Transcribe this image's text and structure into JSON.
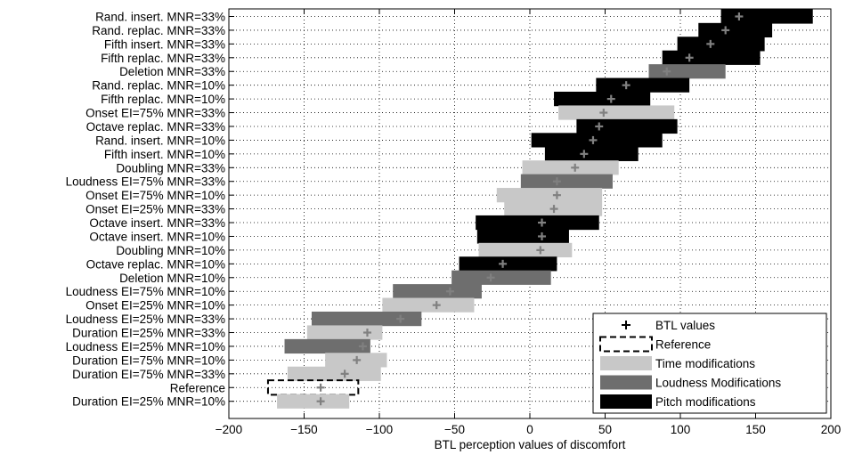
{
  "chart_data": {
    "type": "bar",
    "orientation": "horizontal",
    "xlabel": "BTL perception values of discomfort",
    "xlim": [
      -200,
      200
    ],
    "xticks": [
      -200,
      -150,
      -100,
      -50,
      0,
      50,
      100,
      150,
      200
    ],
    "grid": true,
    "legend_position": "bottom-right",
    "legend": [
      {
        "label": "BTL values",
        "kind": "marker"
      },
      {
        "label": "Reference",
        "kind": "reference"
      },
      {
        "label": "Time modifications",
        "kind": "time"
      },
      {
        "label": "Loudness Modifications",
        "kind": "loudness"
      },
      {
        "label": "Pitch modifications",
        "kind": "pitch"
      }
    ],
    "colors": {
      "time": "#c8c8c8",
      "loudness": "#6e6e6e",
      "pitch": "#000000",
      "marker": "#808080"
    },
    "categories": [
      "Rand. insert. MNR=33%",
      "Rand. replac. MNR=33%",
      "Fifth insert. MNR=33%",
      "Fifth replac. MNR=33%",
      "Deletion MNR=33%",
      "Rand. replac. MNR=10%",
      "Fifth replac. MNR=10%",
      "Onset EI=75% MNR=33%",
      "Octave replac. MNR=33%",
      "Rand. insert. MNR=10%",
      "Fifth insert. MNR=10%",
      "Doubling MNR=33%",
      "Loudness EI=75% MNR=33%",
      "Onset EI=75% MNR=10%",
      "Onset EI=25% MNR=33%",
      "Octave insert. MNR=33%",
      "Octave insert. MNR=10%",
      "Doubling MNR=10%",
      "Octave replac. MNR=10%",
      "Deletion MNR=10%",
      "Loudness EI=75% MNR=10%",
      "Onset EI=25% MNR=10%",
      "Loudness EI=25% MNR=33%",
      "Duration EI=25% MNR=33%",
      "Loudness EI=25% MNR=10%",
      "Duration EI=75% MNR=10%",
      "Duration EI=75% MNR=33%",
      "Reference",
      "Duration EI=25% MNR=10%"
    ],
    "bars": [
      {
        "low": 127,
        "high": 188,
        "btl": 139,
        "kind": "pitch"
      },
      {
        "low": 112,
        "high": 161,
        "btl": 130,
        "kind": "pitch"
      },
      {
        "low": 98,
        "high": 156,
        "btl": 120,
        "kind": "pitch"
      },
      {
        "low": 88,
        "high": 153,
        "btl": 106,
        "kind": "pitch"
      },
      {
        "low": 79,
        "high": 130,
        "btl": 91,
        "kind": "loudness"
      },
      {
        "low": 44,
        "high": 106,
        "btl": 64,
        "kind": "pitch"
      },
      {
        "low": 16,
        "high": 80,
        "btl": 54,
        "kind": "pitch"
      },
      {
        "low": 19,
        "high": 96,
        "btl": 49,
        "kind": "time"
      },
      {
        "low": 31,
        "high": 98,
        "btl": 46,
        "kind": "pitch"
      },
      {
        "low": 1,
        "high": 88,
        "btl": 42,
        "kind": "pitch"
      },
      {
        "low": 10,
        "high": 72,
        "btl": 36,
        "kind": "pitch"
      },
      {
        "low": -5,
        "high": 59,
        "btl": 30,
        "kind": "time"
      },
      {
        "low": -6,
        "high": 55,
        "btl": 18,
        "kind": "loudness"
      },
      {
        "low": -22,
        "high": 48,
        "btl": 18,
        "kind": "time"
      },
      {
        "low": -17,
        "high": 48,
        "btl": 16,
        "kind": "time"
      },
      {
        "low": -36,
        "high": 46,
        "btl": 8,
        "kind": "pitch"
      },
      {
        "low": -35,
        "high": 26,
        "btl": 8,
        "kind": "pitch"
      },
      {
        "low": -34,
        "high": 28,
        "btl": 7,
        "kind": "time"
      },
      {
        "low": -47,
        "high": 18,
        "btl": -18,
        "kind": "pitch"
      },
      {
        "low": -52,
        "high": 14,
        "btl": -26,
        "kind": "loudness"
      },
      {
        "low": -91,
        "high": -32,
        "btl": -53,
        "kind": "loudness"
      },
      {
        "low": -98,
        "high": -37,
        "btl": -62,
        "kind": "time"
      },
      {
        "low": -145,
        "high": -72,
        "btl": -86,
        "kind": "loudness"
      },
      {
        "low": -148,
        "high": -98,
        "btl": -108,
        "kind": "time"
      },
      {
        "low": -163,
        "high": -106,
        "btl": -111,
        "kind": "loudness"
      },
      {
        "low": -136,
        "high": -95,
        "btl": -115,
        "kind": "time"
      },
      {
        "low": -161,
        "high": -99,
        "btl": -123,
        "kind": "time"
      },
      {
        "low": -174,
        "high": -114,
        "btl": -139,
        "kind": "reference"
      },
      {
        "low": -168,
        "high": -120,
        "btl": -139,
        "kind": "time"
      }
    ]
  }
}
